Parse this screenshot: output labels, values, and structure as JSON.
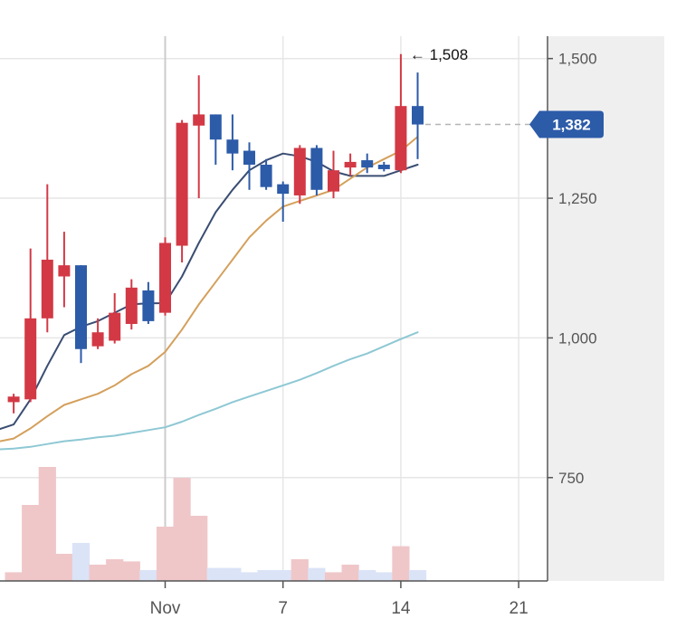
{
  "chart_data": {
    "type": "candlestick",
    "title": "",
    "xlabel": "",
    "ylabel": "",
    "ylim": [
      565,
      1540
    ],
    "yticks": [
      750,
      1000,
      1250,
      1500
    ],
    "ytick_labels": [
      "750",
      "1,000",
      "1,250",
      "1,500"
    ],
    "x_range_days": [
      -10.3,
      23
    ],
    "x_ticks": [
      {
        "day": 0,
        "label": "Nov"
      },
      {
        "day": 7,
        "label": "7"
      },
      {
        "day": 14,
        "label": "14"
      },
      {
        "day": 21,
        "label": "21"
      }
    ],
    "volume_range": [
      0,
      110
    ],
    "colors": {
      "up": "#d23945",
      "down": "#2c5ba8",
      "up_volume": "#efc7c9",
      "down_volume": "#dbe3f7",
      "ma_short": "#3a4d72",
      "ma_mid": "#d4a05c",
      "ma_long": "#8ec8d4",
      "last_price_bg": "#2c5ba8",
      "price_panel_bg": "#efefef"
    },
    "candles": [
      {
        "day": -9,
        "open": 885,
        "close": 895,
        "high": 900,
        "low": 865,
        "volume": 8
      },
      {
        "day": -8,
        "open": 890,
        "close": 1035,
        "high": 1160,
        "low": 885,
        "volume": 70
      },
      {
        "day": -7,
        "open": 1035,
        "close": 1140,
        "high": 1275,
        "low": 1010,
        "volume": 105
      },
      {
        "day": -6,
        "open": 1110,
        "close": 1130,
        "high": 1190,
        "low": 1055,
        "volume": 25
      },
      {
        "day": -5,
        "open": 1130,
        "close": 980,
        "high": 1130,
        "low": 955,
        "volume": 35
      },
      {
        "day": -4,
        "open": 985,
        "close": 1010,
        "high": 1035,
        "low": 980,
        "volume": 15
      },
      {
        "day": -3,
        "open": 995,
        "close": 1045,
        "high": 1080,
        "low": 990,
        "volume": 20
      },
      {
        "day": -2,
        "open": 1025,
        "close": 1090,
        "high": 1105,
        "low": 1015,
        "volume": 18
      },
      {
        "day": -1,
        "open": 1085,
        "close": 1030,
        "high": 1100,
        "low": 1025,
        "volume": 10
      },
      {
        "day": 0,
        "open": 1045,
        "close": 1170,
        "high": 1180,
        "low": 1040,
        "volume": 50
      },
      {
        "day": 1,
        "open": 1165,
        "close": 1385,
        "high": 1390,
        "low": 1135,
        "volume": 95
      },
      {
        "day": 2,
        "open": 1380,
        "close": 1400,
        "high": 1470,
        "low": 1250,
        "volume": 60
      },
      {
        "day": 3,
        "open": 1400,
        "close": 1355,
        "high": 1400,
        "low": 1310,
        "volume": 12
      },
      {
        "day": 4,
        "open": 1355,
        "close": 1330,
        "high": 1400,
        "low": 1300,
        "volume": 12
      },
      {
        "day": 5,
        "open": 1335,
        "close": 1310,
        "high": 1350,
        "low": 1265,
        "volume": 8
      },
      {
        "day": 6,
        "open": 1310,
        "close": 1270,
        "high": 1320,
        "low": 1265,
        "volume": 10
      },
      {
        "day": 7,
        "open": 1275,
        "close": 1258,
        "high": 1280,
        "low": 1208,
        "volume": 10
      },
      {
        "day": 8,
        "open": 1255,
        "close": 1340,
        "high": 1345,
        "low": 1240,
        "volume": 20
      },
      {
        "day": 9,
        "open": 1340,
        "close": 1265,
        "high": 1345,
        "low": 1255,
        "volume": 12
      },
      {
        "day": 10,
        "open": 1262,
        "close": 1300,
        "high": 1335,
        "low": 1250,
        "volume": 8
      },
      {
        "day": 11,
        "open": 1305,
        "close": 1315,
        "high": 1330,
        "low": 1290,
        "volume": 15
      },
      {
        "day": 12,
        "open": 1318,
        "close": 1305,
        "high": 1330,
        "low": 1295,
        "volume": 10
      },
      {
        "day": 13,
        "open": 1310,
        "close": 1302,
        "high": 1315,
        "low": 1298,
        "volume": 8
      },
      {
        "day": 14,
        "open": 1300,
        "close": 1415,
        "high": 1508,
        "low": 1295,
        "volume": 32
      },
      {
        "day": 15,
        "open": 1415,
        "close": 1382,
        "high": 1475,
        "low": 1320,
        "volume": 10
      }
    ],
    "series": [
      {
        "name": "MA short",
        "color_key": "ma_short",
        "x": [
          -10.3,
          -9,
          -8,
          -7,
          -6,
          -5,
          -4,
          -3,
          -2,
          -1,
          0,
          1,
          2,
          3,
          4,
          5,
          6,
          7,
          8,
          9,
          10,
          11,
          12,
          13,
          14,
          15
        ],
        "values": [
          832,
          845,
          890,
          950,
          1005,
          1020,
          1030,
          1045,
          1060,
          1062,
          1062,
          1110,
          1170,
          1225,
          1265,
          1300,
          1318,
          1330,
          1325,
          1315,
          1298,
          1290,
          1290,
          1290,
          1300,
          1310
        ]
      },
      {
        "name": "MA mid",
        "color_key": "ma_mid",
        "x": [
          -10.3,
          -9,
          -8,
          -7,
          -6,
          -5,
          -4,
          -3,
          -2,
          -1,
          0,
          1,
          2,
          3,
          4,
          5,
          6,
          7,
          8,
          9,
          10,
          11,
          12,
          13,
          14,
          15
        ],
        "values": [
          812,
          820,
          838,
          860,
          880,
          890,
          900,
          915,
          935,
          950,
          975,
          1015,
          1060,
          1100,
          1140,
          1180,
          1210,
          1235,
          1245,
          1255,
          1265,
          1285,
          1305,
          1320,
          1335,
          1360
        ]
      },
      {
        "name": "MA long",
        "color_key": "ma_long",
        "x": [
          -10.3,
          -9,
          -8,
          -7,
          -6,
          -5,
          -4,
          -3,
          -2,
          -1,
          0,
          1,
          2,
          3,
          4,
          5,
          6,
          7,
          8,
          9,
          10,
          11,
          12,
          13,
          14,
          15
        ],
        "values": [
          800,
          802,
          805,
          810,
          815,
          818,
          822,
          825,
          830,
          835,
          840,
          850,
          862,
          873,
          885,
          895,
          905,
          915,
          925,
          937,
          950,
          962,
          972,
          985,
          998,
          1010
        ]
      }
    ],
    "last_price": 1382,
    "last_price_label": "1,382",
    "annotations": [
      {
        "text": "← 1,508",
        "day": 14,
        "value": 1508
      }
    ]
  }
}
